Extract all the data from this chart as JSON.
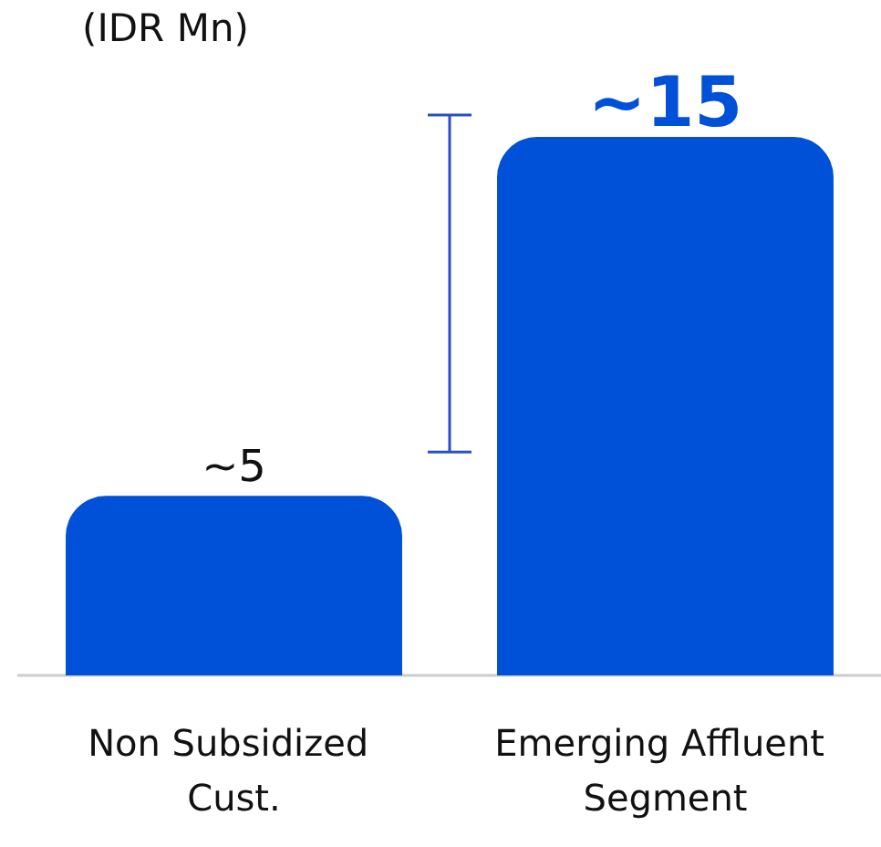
{
  "chart_data": {
    "type": "bar",
    "ylabel": "(IDR Mn)",
    "categories": [
      "Non Subsidized Cust.",
      "Emerging Affluent Segment"
    ],
    "values": [
      5,
      15
    ],
    "value_labels": [
      "~5",
      "~15"
    ],
    "color": "#0050d8",
    "tick_labels": "x"
  }
}
